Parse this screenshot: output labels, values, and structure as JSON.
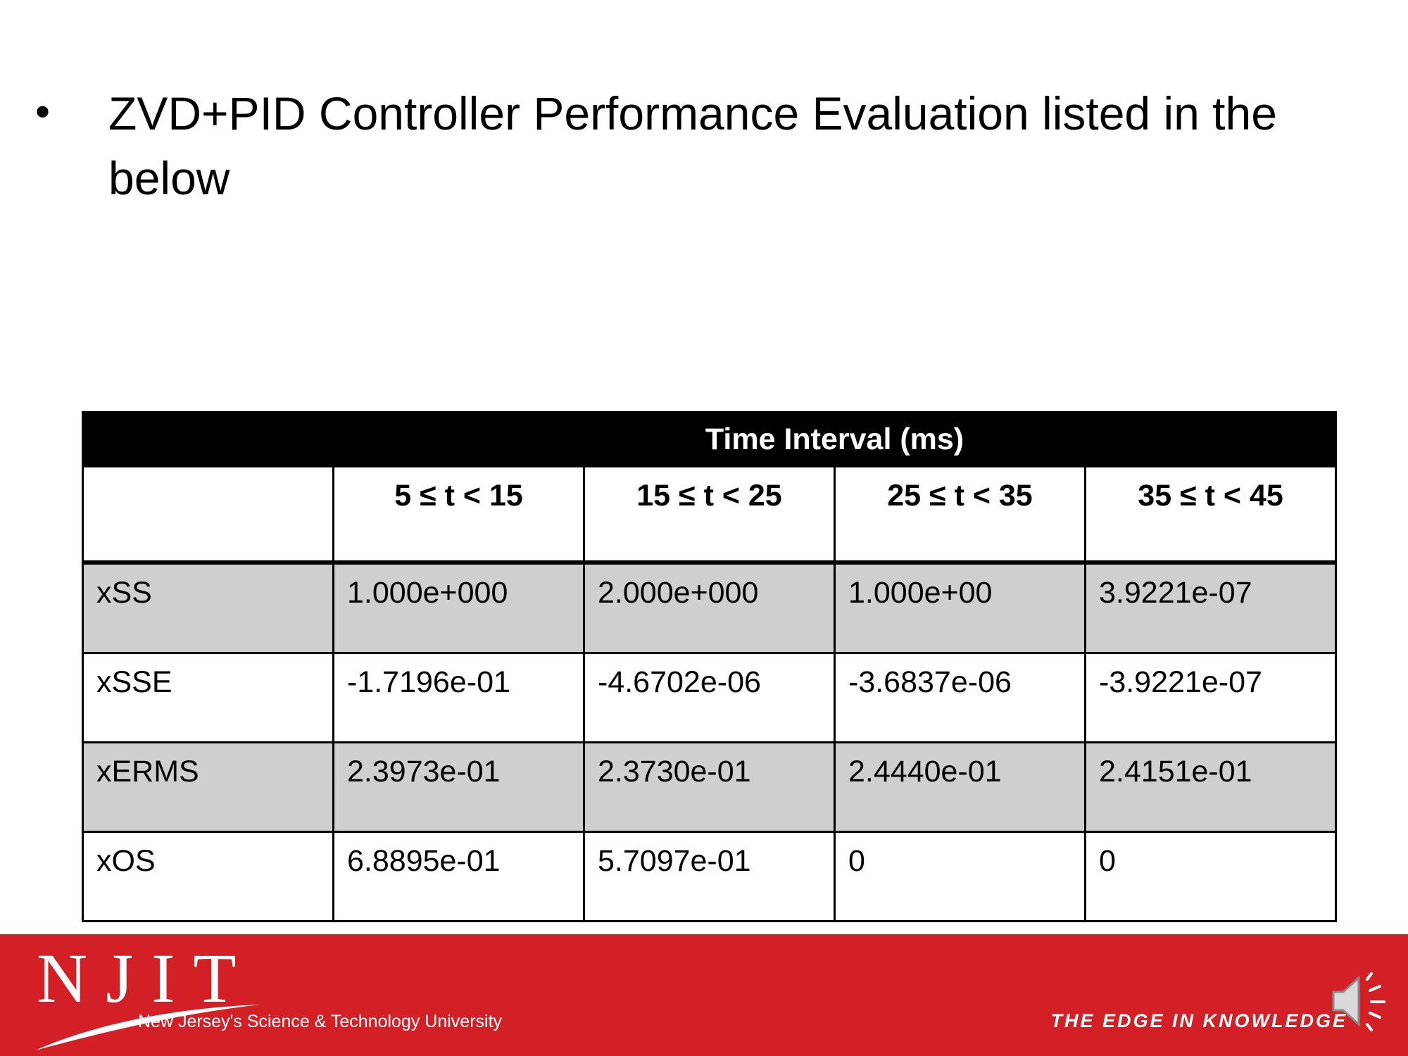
{
  "slide": {
    "bullet_symbol": "•",
    "bullet_text": "ZVD+PID Controller Performance Evaluation listed in the below"
  },
  "table": {
    "group_header": "Time Interval (ms)",
    "columns": [
      "5 ≤ t < 15",
      "15 ≤ t < 25",
      "25 ≤ t < 35",
      "35 ≤ t < 45"
    ],
    "rows": [
      {
        "label": "xSS",
        "values": [
          "1.000e+000",
          "2.000e+000",
          "1.000e+00",
          "3.9221e-07"
        ]
      },
      {
        "label": "xSSE",
        "values": [
          "-1.7196e-01",
          "-4.6702e-06",
          "-3.6837e-06",
          "-3.9221e-07"
        ]
      },
      {
        "label": "xERMS",
        "values": [
          "2.3973e-01",
          "2.3730e-01",
          "2.4440e-01",
          "2.4151e-01"
        ]
      },
      {
        "label": "xOS",
        "values": [
          "6.8895e-01",
          "5.7097e-01",
          "0",
          "0"
        ]
      }
    ]
  },
  "footer": {
    "logo": "NJIT",
    "logo_subtitle": "New Jersey's Science & Technology University",
    "tagline": "THE EDGE IN KNOWLEDGE",
    "speaker_icon": "speaker-icon",
    "bar_color": "#d31f26"
  }
}
